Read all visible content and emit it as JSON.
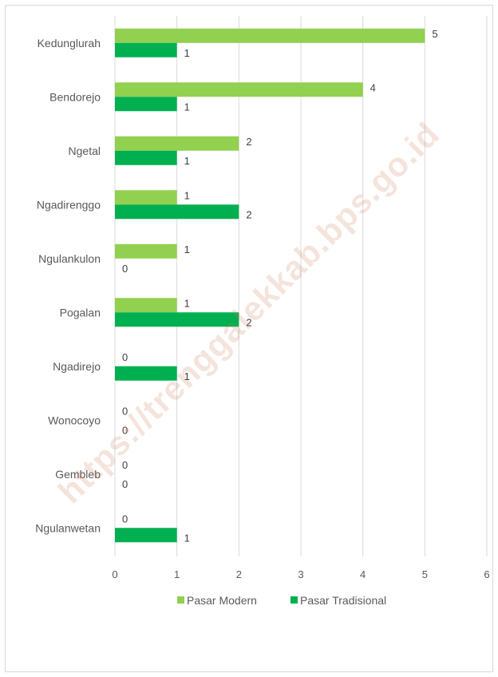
{
  "chart_data": {
    "type": "bar",
    "orientation": "horizontal",
    "categories": [
      "Kedunglurah",
      "Bendorejo",
      "Ngetal",
      "Ngadirenggo",
      "Ngulankulon",
      "Pogalan",
      "Ngadirejo",
      "Wonocoyo",
      "Gembleb",
      "Ngulanwetan"
    ],
    "series": [
      {
        "name": "Pasar Modern",
        "values": [
          5,
          4,
          2,
          1,
          1,
          1,
          0,
          0,
          0,
          0
        ],
        "color": "#92d050"
      },
      {
        "name": "Pasar Tradisional",
        "values": [
          1,
          1,
          1,
          2,
          0,
          2,
          1,
          0,
          0,
          1
        ],
        "color": "#00b050"
      }
    ],
    "xlim": [
      0,
      6
    ],
    "xticks": [
      "0",
      "1",
      "2",
      "3",
      "4",
      "5",
      "6"
    ],
    "grid": true,
    "legend": "bottom",
    "title": "",
    "xlabel": "",
    "ylabel": ""
  },
  "watermark": "https://trenggalekkab.bps.go.id",
  "colors": {
    "gridline": "#d9d9d9",
    "label": "#595959"
  }
}
